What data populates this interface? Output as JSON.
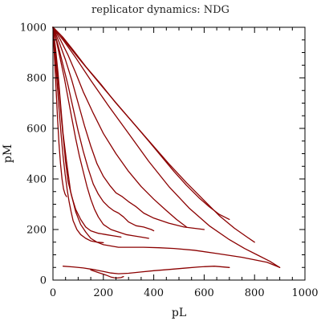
{
  "chart_data": {
    "type": "line",
    "title": "replicator dynamics: NDG",
    "xlabel": "pL",
    "ylabel": "pM",
    "xlim": [
      0,
      1000
    ],
    "ylim": [
      0,
      1000
    ],
    "xticks": [
      0,
      200,
      400,
      600,
      800,
      1000
    ],
    "yticks": [
      0,
      200,
      400,
      600,
      800,
      1000
    ],
    "xtick_labels": [
      "0",
      "200",
      "400",
      "600",
      "800",
      "1000"
    ],
    "ytick_labels": [
      "0",
      "200",
      "400",
      "600",
      "800",
      "1000"
    ],
    "minor_tick_step": 50,
    "grid": false,
    "line_color": "#8b0000",
    "series": [
      {
        "x": [
          0,
          30,
          60,
          100,
          150,
          200,
          260,
          320,
          380,
          430,
          480,
          530,
          580,
          620,
          660,
          700
        ],
        "y": [
          1000,
          970,
          930,
          880,
          820,
          760,
          690,
          620,
          550,
          490,
          430,
          375,
          325,
          290,
          260,
          240
        ]
      },
      {
        "x": [
          0,
          40,
          80,
          130,
          190,
          250,
          320,
          390,
          460,
          530,
          600,
          660,
          720,
          770,
          800
        ],
        "y": [
          1000,
          960,
          910,
          845,
          775,
          700,
          620,
          540,
          460,
          385,
          315,
          255,
          205,
          170,
          150
        ]
      },
      {
        "x": [
          0,
          40,
          90,
          150,
          220,
          300,
          380,
          460,
          540,
          620,
          700,
          760,
          810,
          860,
          900
        ],
        "y": [
          1000,
          950,
          880,
          790,
          690,
          580,
          470,
          370,
          285,
          215,
          160,
          125,
          100,
          75,
          50
        ]
      },
      {
        "x": [
          0,
          30,
          60,
          90,
          120,
          160,
          200,
          250,
          300,
          350,
          400,
          450,
          490,
          530
        ],
        "y": [
          1000,
          950,
          890,
          820,
          745,
          660,
          580,
          500,
          430,
          370,
          320,
          275,
          240,
          210
        ]
      },
      {
        "x": [
          0,
          25,
          50,
          75,
          100,
          125,
          150,
          175,
          200,
          225,
          250,
          275,
          300,
          330,
          360,
          400,
          460,
          520,
          600
        ],
        "y": [
          1000,
          940,
          870,
          790,
          700,
          610,
          530,
          460,
          410,
          375,
          345,
          330,
          310,
          290,
          265,
          245,
          225,
          210,
          200
        ]
      },
      {
        "x": [
          0,
          20,
          40,
          60,
          80,
          100,
          120,
          140,
          160,
          180,
          200,
          220,
          240,
          260,
          280,
          300,
          330,
          360,
          390,
          400
        ],
        "y": [
          1000,
          930,
          850,
          770,
          680,
          590,
          510,
          440,
          380,
          340,
          310,
          290,
          275,
          265,
          250,
          230,
          215,
          210,
          200,
          195
        ]
      },
      {
        "x": [
          0,
          15,
          30,
          45,
          60,
          75,
          90,
          105,
          120,
          135,
          150,
          165,
          180,
          200,
          230,
          260,
          290,
          320,
          350,
          380
        ],
        "y": [
          1000,
          940,
          870,
          800,
          720,
          640,
          560,
          490,
          430,
          370,
          320,
          280,
          250,
          220,
          200,
          190,
          180,
          175,
          170,
          165
        ]
      },
      {
        "x": [
          0,
          10,
          20,
          30,
          40,
          55,
          70,
          90,
          110,
          130,
          150,
          175,
          200,
          230,
          260,
          300,
          360,
          420,
          480,
          560,
          650,
          750,
          850,
          900
        ],
        "y": [
          1000,
          920,
          820,
          700,
          580,
          460,
          350,
          270,
          220,
          190,
          165,
          150,
          140,
          135,
          130,
          130,
          130,
          128,
          125,
          118,
          105,
          90,
          70,
          50
        ]
      },
      {
        "x": [
          0,
          10,
          20,
          30,
          40,
          50,
          60,
          75,
          90,
          110,
          130,
          150,
          180,
          210,
          240,
          270
        ],
        "y": [
          1000,
          900,
          790,
          680,
          570,
          470,
          390,
          330,
          280,
          240,
          210,
          195,
          185,
          180,
          175,
          170
        ]
      },
      {
        "x": [
          0,
          8,
          16,
          24,
          32,
          40,
          48,
          56,
          64,
          72,
          80,
          95,
          110,
          130,
          150,
          175,
          200
        ],
        "y": [
          1000,
          900,
          790,
          680,
          580,
          490,
          420,
          360,
          310,
          270,
          235,
          200,
          180,
          165,
          155,
          150,
          148
        ]
      },
      {
        "x": [
          0,
          6,
          12,
          18,
          24,
          30,
          36,
          42,
          48,
          54
        ],
        "y": [
          1000,
          880,
          760,
          640,
          540,
          460,
          400,
          360,
          340,
          330
        ]
      },
      {
        "x": [
          40,
          80,
          120,
          160,
          180,
          200,
          230,
          260,
          300,
          350,
          400,
          460,
          520,
          580,
          640,
          700
        ],
        "y": [
          55,
          52,
          48,
          42,
          38,
          34,
          28,
          25,
          27,
          32,
          37,
          42,
          47,
          52,
          55,
          50
        ]
      },
      {
        "x": [
          150,
          180,
          210,
          230,
          250,
          270,
          280
        ],
        "y": [
          40,
          30,
          20,
          12,
          8,
          10,
          14
        ]
      }
    ]
  }
}
